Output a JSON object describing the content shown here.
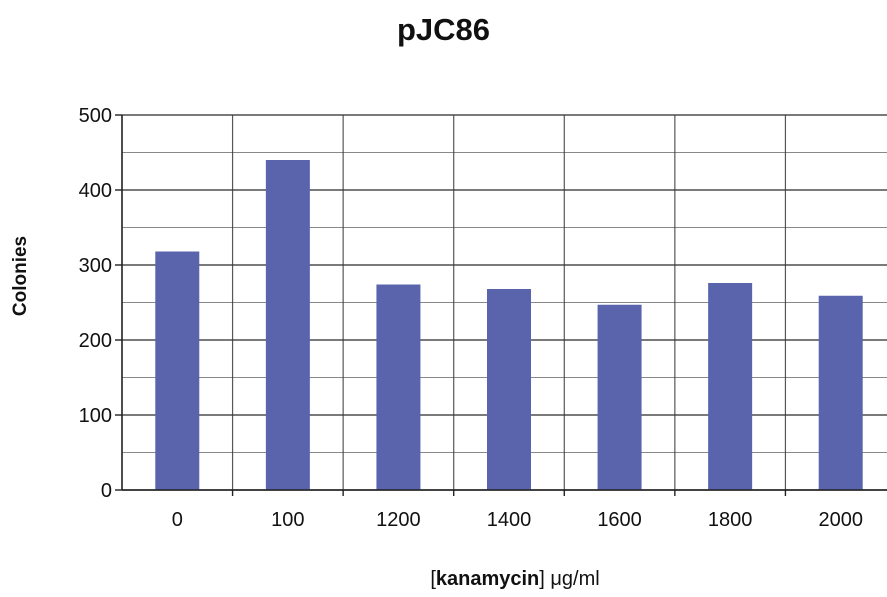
{
  "chart_data": {
    "type": "bar",
    "title": "pJC86",
    "xlabel_bold": "kanamycin",
    "xlabel_prefix": "[",
    "xlabel_suffix": "] μg/ml",
    "ylabel": "Colonies",
    "categories": [
      "0",
      "100",
      "1200",
      "1400",
      "1600",
      "1800",
      "2000"
    ],
    "values": [
      318,
      440,
      274,
      268,
      247,
      276,
      259
    ],
    "ylim": [
      0,
      500
    ],
    "yticks": [
      "0",
      "100",
      "200",
      "300",
      "400",
      "500"
    ],
    "grid": true,
    "legend": "none",
    "bar_color": "#5964ad",
    "grid_color": "#3a3a3a"
  }
}
